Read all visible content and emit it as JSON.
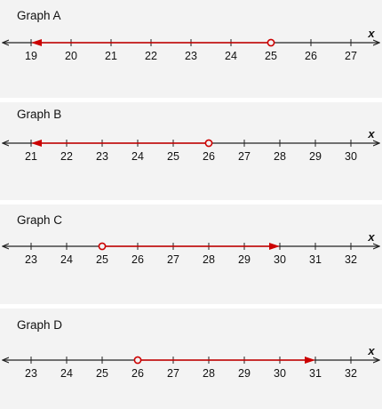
{
  "colors": {
    "panel_bg": "#f3f3f3",
    "axis": "#222222",
    "ray": "#cc0000"
  },
  "graphs": [
    {
      "title": "Graph A",
      "axis_label": "x",
      "ticks": [
        19,
        20,
        21,
        22,
        23,
        24,
        25,
        26,
        27
      ],
      "point": 25,
      "circle": "open",
      "direction": "left",
      "arrow_end": 19
    },
    {
      "title": "Graph B",
      "axis_label": "x",
      "ticks": [
        21,
        22,
        23,
        24,
        25,
        26,
        27,
        28,
        29,
        30
      ],
      "point": 26,
      "circle": "open",
      "direction": "left",
      "arrow_end": 21
    },
    {
      "title": "Graph C",
      "axis_label": "x",
      "ticks": [
        23,
        24,
        25,
        26,
        27,
        28,
        29,
        30,
        31,
        32
      ],
      "point": 25,
      "circle": "open",
      "direction": "right",
      "arrow_end": 30
    },
    {
      "title": "Graph D",
      "axis_label": "x",
      "ticks": [
        23,
        24,
        25,
        26,
        27,
        28,
        29,
        30,
        31,
        32
      ],
      "point": 26,
      "circle": "open",
      "direction": "right",
      "arrow_end": 31
    }
  ]
}
